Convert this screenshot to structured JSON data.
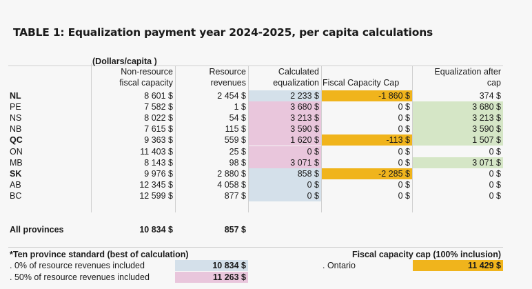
{
  "title": "TABLE 1: Equalization payment year 2024-2025, per capita calculations",
  "units_label": "(Dollars/capita )",
  "headers": {
    "col1": [
      "Non-resource",
      "fiscal capacity"
    ],
    "col2": [
      "Resource",
      "revenues"
    ],
    "col3": [
      "Calculated",
      "equalization"
    ],
    "col4": [
      "",
      "Fiscal Capacity Cap"
    ],
    "col5": [
      "Equalization after",
      "cap"
    ]
  },
  "rows": [
    {
      "prov": "NL",
      "bold": true,
      "c1": "8 601 $",
      "c2": "2 454 $",
      "c3": "2 233 $",
      "c4": "-1 860 $",
      "c5": "374 $"
    },
    {
      "prov": "PE",
      "bold": false,
      "c1": "7 582 $",
      "c2": "1 $",
      "c3": "3 680 $",
      "c4": "0 $",
      "c5": "3 680 $"
    },
    {
      "prov": "NS",
      "bold": false,
      "c1": "8 022 $",
      "c2": "54 $",
      "c3": "3 213 $",
      "c4": "0 $",
      "c5": "3 213 $"
    },
    {
      "prov": "NB",
      "bold": false,
      "c1": "7 615 $",
      "c2": "115 $",
      "c3": "3 590 $",
      "c4": "0 $",
      "c5": "3 590 $"
    },
    {
      "prov": "QC",
      "bold": true,
      "c1": "9 363 $",
      "c2": "559 $",
      "c3": "1 620 $",
      "c4": "-113 $",
      "c5": "1 507 $"
    },
    {
      "prov": "ON",
      "bold": false,
      "c1": "11 403 $",
      "c2": "25 $",
      "c3": "0 $",
      "c4": "0 $",
      "c5": "0 $"
    },
    {
      "prov": "MB",
      "bold": false,
      "c1": "8 143 $",
      "c2": "98 $",
      "c3": "3 071 $",
      "c4": "0 $",
      "c5": "3 071 $"
    },
    {
      "prov": "SK",
      "bold": true,
      "c1": "9 976 $",
      "c2": "2 880 $",
      "c3": "858 $",
      "c4": "-2 285 $",
      "c5": "0 $"
    },
    {
      "prov": "AB",
      "bold": false,
      "c1": "12 345 $",
      "c2": "4 058 $",
      "c3": "0 $",
      "c4": "0 $",
      "c5": "0 $"
    },
    {
      "prov": "BC",
      "bold": false,
      "c1": "12 599 $",
      "c2": "877 $",
      "c3": "0 $",
      "c4": "0 $",
      "c5": "0 $"
    }
  ],
  "totals": {
    "label": "All provinces",
    "c1": "10 834 $",
    "c2": "857 $"
  },
  "standard": {
    "heading": "*Ten province standard (best of calculation)",
    "items": [
      {
        "label": ". 0% of resource revenues included",
        "value": "10 834 $",
        "color": "#d4e0ea"
      },
      {
        "label": ". 50% of resource revenues included",
        "value": "11 263 $",
        "color": "#e9c6dc"
      }
    ]
  },
  "cap": {
    "heading": "Fiscal capacity cap (100% inclusion)",
    "label": ". Ontario",
    "value": "11 429 $",
    "color": "#f0b41c"
  },
  "colors": {
    "blue": "#d4e0ea",
    "pink": "#e9c6dc",
    "orange": "#f0b41c",
    "green": "#d5e6c6"
  }
}
